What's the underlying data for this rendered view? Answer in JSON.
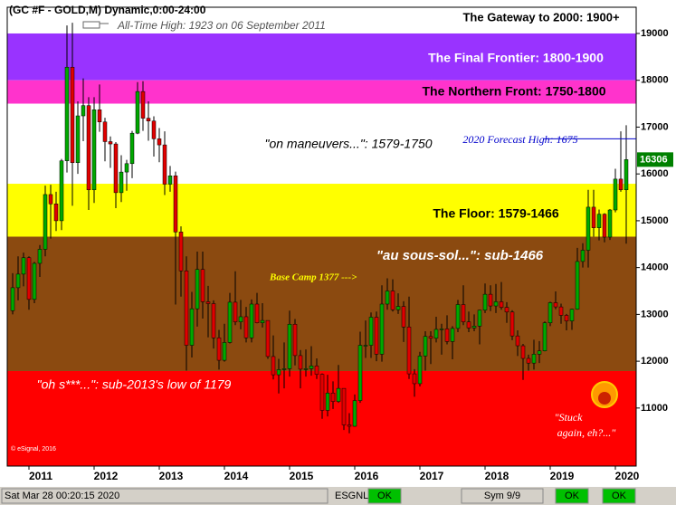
{
  "chart_data": {
    "type": "candlestick",
    "header": "(GC #F - GOLD,M) Dynamic,0:00-24:00",
    "subtitle": "All-Time High:  1923 on 06 September 2011",
    "categories": [
      null,
      null,
      null,
      "2011",
      null,
      null,
      null,
      null,
      null,
      null,
      null,
      null,
      null,
      null,
      null,
      "2012",
      null,
      null,
      null,
      null,
      null,
      null,
      null,
      null,
      null,
      null,
      null,
      "2013",
      null,
      null,
      null,
      null,
      null,
      null,
      null,
      null,
      null,
      null,
      null,
      "2014",
      null,
      null,
      null,
      null,
      null,
      null,
      null,
      null,
      null,
      null,
      null,
      "2015",
      null,
      null,
      null,
      null,
      null,
      null,
      null,
      null,
      null,
      null,
      null,
      "2016",
      null,
      null,
      null,
      null,
      null,
      null,
      null,
      null,
      null,
      null,
      null,
      "2017",
      null,
      null,
      null,
      null,
      null,
      null,
      null,
      null,
      null,
      null,
      null,
      "2018",
      null,
      null,
      null,
      null,
      null,
      null,
      null,
      null,
      null,
      null,
      null,
      "2019",
      null,
      null,
      null,
      null,
      null,
      null,
      null,
      null,
      null,
      null,
      null,
      "2020",
      null,
      null
    ],
    "open": [
      13080,
      13570,
      13860,
      14210,
      13320,
      14090,
      14390,
      15560,
      15360,
      15000,
      16280,
      18280,
      16240,
      17240,
      17460,
      15660,
      17370,
      17110,
      16690,
      16640,
      15600,
      16040,
      16220,
      16870,
      17760,
      17190,
      17130,
      16750,
      16620,
      15780,
      15960,
      14760,
      13930,
      12340,
      13120,
      13960,
      13270,
      13230,
      12500,
      12020,
      12400,
      13260,
      12840,
      12950,
      12500,
      13220,
      12820,
      12870,
      12100,
      11710,
      11820,
      11840,
      12790,
      12120,
      11830,
      11840,
      11900,
      11720,
      10950,
      11320,
      11140,
      11420,
      10640,
      10610,
      11160,
      12340,
      12340,
      12940,
      12150,
      13220,
      13500,
      13100,
      13170,
      12730,
      11730,
      11520,
      12110,
      12530,
      12490,
      12680,
      12690,
      12420,
      12700,
      13210,
      12840,
      12710,
      12750,
      13090,
      13430,
      13180,
      13270,
      13150,
      13050,
      12540,
      12330,
      12060,
      11960,
      12150,
      12220,
      12820,
      13250,
      13160,
      12980,
      12860,
      13110,
      14130,
      14370,
      15290,
      14850,
      15140,
      14650,
      15230,
      15890,
      15660
    ],
    "high": [
      13880,
      14240,
      14320,
      14240,
      14120,
      14480,
      15750,
      15770,
      15620,
      16320,
      19170,
      19230,
      17550,
      18040,
      17640,
      17640,
      17910,
      17200,
      16800,
      16680,
      16400,
      16300,
      16920,
      17960,
      17980,
      17550,
      17230,
      16980,
      16910,
      16170,
      16050,
      14880,
      14240,
      13480,
      14340,
      14340,
      13610,
      13300,
      12670,
      12800,
      13460,
      13920,
      13310,
      13160,
      13320,
      13460,
      13240,
      12870,
      12550,
      12050,
      12400,
      13080,
      12900,
      12240,
      12250,
      12320,
      12060,
      11740,
      11710,
      11570,
      11920,
      11420,
      10890,
      11290,
      12630,
      12870,
      13040,
      13060,
      13620,
      13770,
      13750,
      13450,
      13280,
      13380,
      11830,
      12200,
      12640,
      12640,
      12950,
      12800,
      12980,
      12750,
      13310,
      13620,
      13060,
      13000,
      13100,
      13660,
      13620,
      13650,
      13690,
      13260,
      13090,
      12660,
      12370,
      12140,
      12460,
      12430,
      12850,
      13270,
      13490,
      13230,
      13010,
      13120,
      14420,
      14520,
      15660,
      15660,
      15240,
      15160,
      15250,
      16110,
      16910,
      17040
    ],
    "low": [
      13000,
      13300,
      13600,
      13100,
      13240,
      13800,
      14240,
      14620,
      14780,
      14800,
      16030,
      15320,
      16000,
      16700,
      15230,
      15380,
      16900,
      16270,
      16130,
      15270,
      15400,
      15640,
      15910,
      16850,
      16920,
      16710,
      16370,
      16250,
      15550,
      15620,
      13210,
      13380,
      11800,
      12080,
      12740,
      12910,
      12510,
      12270,
      11820,
      11990,
      12380,
      12770,
      12680,
      12400,
      12400,
      12810,
      12720,
      12050,
      11610,
      11310,
      11420,
      11670,
      11910,
      11420,
      11670,
      11690,
      11620,
      10770,
      10820,
      10980,
      11110,
      10530,
      10460,
      10600,
      11110,
      12070,
      12070,
      12000,
      11990,
      13100,
      13060,
      13010,
      12410,
      11620,
      11240,
      11460,
      11800,
      11940,
      12400,
      12140,
      12360,
      12040,
      12620,
      12770,
      12620,
      12640,
      12360,
      13030,
      13070,
      13030,
      13100,
      12820,
      12450,
      12110,
      11600,
      11800,
      11820,
      11960,
      12210,
      12750,
      13110,
      12800,
      12660,
      12670,
      13100,
      14000,
      14000,
      14660,
      14580,
      14540,
      14590,
      15180,
      15620,
      14510
    ],
    "close": [
      13570,
      13860,
      14210,
      13320,
      14090,
      14390,
      15560,
      15360,
      15000,
      16280,
      18280,
      16240,
      17240,
      17460,
      15660,
      17370,
      17110,
      16690,
      16640,
      15600,
      16040,
      16220,
      16870,
      17760,
      17190,
      17130,
      16750,
      16620,
      15780,
      15960,
      14760,
      13930,
      12340,
      13120,
      13960,
      13270,
      13230,
      12500,
      12020,
      12400,
      13260,
      12840,
      12950,
      12500,
      13220,
      12820,
      12870,
      12100,
      11710,
      11820,
      11840,
      12790,
      12120,
      11830,
      11840,
      11900,
      11720,
      10950,
      11320,
      11140,
      11420,
      10640,
      10610,
      11160,
      12340,
      12340,
      12940,
      12150,
      13220,
      13500,
      13100,
      13170,
      12730,
      11730,
      11520,
      12110,
      12530,
      12490,
      12680,
      12690,
      12420,
      12700,
      13210,
      12840,
      12710,
      12750,
      13090,
      13430,
      13180,
      13270,
      13150,
      13050,
      12540,
      12330,
      12060,
      11960,
      12150,
      12220,
      12820,
      13250,
      13160,
      12980,
      12860,
      13110,
      14130,
      14370,
      15290,
      14850,
      15140,
      14650,
      15230,
      15890,
      15660,
      16306
    ],
    "up_color": "#00a800",
    "down_color": "#e00000",
    "ylim": [
      9760,
      19560
    ],
    "yticks": [
      11000,
      12000,
      13000,
      14000,
      15000,
      16000,
      17000,
      18000,
      19000
    ],
    "bands": [
      {
        "from": 19000,
        "to": 19560,
        "color": "#ffffff",
        "label": "The Gateway to 2000:  1900+",
        "label_color": "#000000"
      },
      {
        "from": 18000,
        "to": 19000,
        "color": "#9933ff",
        "label": "The Final Frontier:  1800-1900",
        "label_color": "#ffffff"
      },
      {
        "from": 17500,
        "to": 18000,
        "color": "#ff33cc",
        "label": "The Northern Front:  1750-1800",
        "label_color": "#000000"
      },
      {
        "from": 15790,
        "to": 17500,
        "color": "#ffffff",
        "label": "\"on maneuvers...\":  1579-1750",
        "label_color": "#000000"
      },
      {
        "from": 14660,
        "to": 15790,
        "color": "#ffff00",
        "label": "The Floor:  1579-1466",
        "label_color": "#000000"
      },
      {
        "from": 11790,
        "to": 14660,
        "color": "#8b4a10",
        "label": "\"au sous-sol...\":  sub-1466",
        "label_color": "#ffffff"
      },
      {
        "from": 9760,
        "to": 11790,
        "color": "#ff0000",
        "label": "\"oh s***...\":  sub-2013's low of 1179",
        "label_color": "#ffffff"
      }
    ],
    "forecast": {
      "label": "2020 Forecast High:  1675",
      "value": 16750,
      "color": "#0000cc"
    },
    "annotations": {
      "base_camp": "Base Camp 1377 --->",
      "stuck": [
        "\"Stuck",
        "again, eh?...\""
      ],
      "copyright": "© eSignal, 2016"
    },
    "status_bar": {
      "time": "Sat Mar 28 00:20:15 2020",
      "feed": "ESGNL:",
      "ok1": "OK",
      "sym": "Sym 9/9",
      "ok2": "OK",
      "ok3": "OK"
    }
  }
}
